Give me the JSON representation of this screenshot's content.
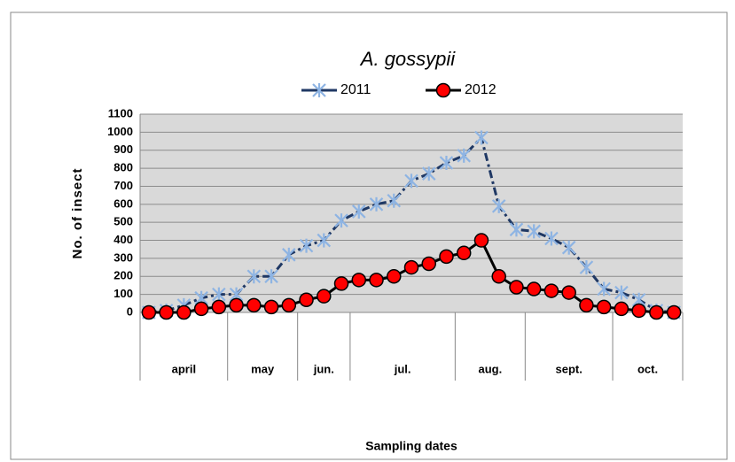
{
  "chart_data": {
    "type": "line",
    "title": "A. gossypii",
    "y_label": "No. of insect",
    "x_label": "Sampling dates",
    "categories": [
      null,
      null,
      null,
      null,
      null,
      null,
      null,
      null,
      null,
      null,
      null,
      null,
      null,
      null,
      null,
      null,
      null,
      null,
      null,
      null,
      null,
      null,
      null,
      null,
      null,
      null,
      null,
      null,
      null,
      null,
      null
    ],
    "groups": [
      {
        "label": "april",
        "span": 5
      },
      {
        "label": "may",
        "span": 4
      },
      {
        "label": "jun.",
        "span": 3
      },
      {
        "label": "jul.",
        "span": 6
      },
      {
        "label": "aug.",
        "span": 4
      },
      {
        "label": "sept.",
        "span": 5
      },
      {
        "label": "oct.",
        "span": 4
      }
    ],
    "series": [
      {
        "name": "2011",
        "color": "#1f3864",
        "marker_color": "#8eb4e3",
        "marker": "star",
        "values": [
          0,
          10,
          40,
          80,
          100,
          100,
          200,
          200,
          320,
          370,
          400,
          510,
          560,
          600,
          620,
          730,
          770,
          830,
          870,
          970,
          590,
          460,
          450,
          410,
          360,
          250,
          130,
          110,
          70,
          10,
          0
        ]
      },
      {
        "name": "2012",
        "color": "#000000",
        "marker_color": "#ff0000",
        "marker": "circle",
        "values": [
          0,
          0,
          0,
          20,
          30,
          40,
          40,
          30,
          40,
          70,
          90,
          160,
          180,
          180,
          200,
          250,
          270,
          310,
          330,
          400,
          200,
          140,
          130,
          120,
          110,
          40,
          30,
          20,
          10,
          0,
          0
        ]
      }
    ],
    "ylim": [
      0,
      1100
    ],
    "yticks": [
      0,
      100,
      200,
      300,
      400,
      500,
      600,
      700,
      800,
      900,
      1000,
      1100
    ],
    "grid": true
  }
}
